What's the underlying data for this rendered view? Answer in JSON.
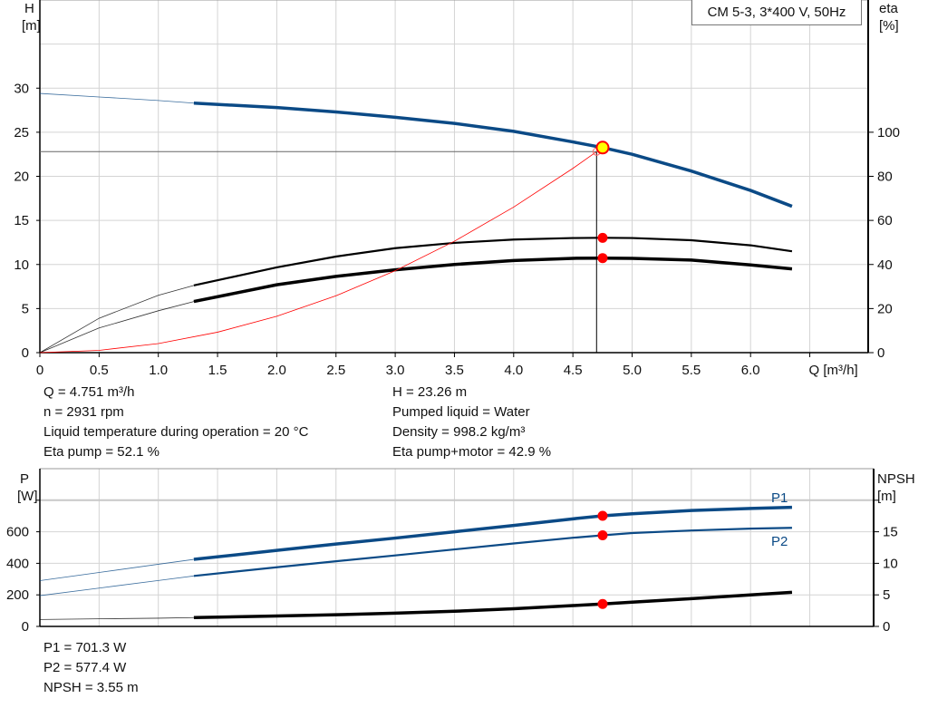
{
  "chart_data": [
    {
      "type": "line",
      "title": "CM 5-3, 3*400 V, 50Hz",
      "xlabel": "Q [m³/h]",
      "ylabel": "H",
      "ylabel_unit": "[m]",
      "y2label": "eta",
      "y2label_unit": "[%]",
      "xlim": [
        0,
        7
      ],
      "ylim": [
        0,
        40
      ],
      "y2lim": [
        0,
        160
      ],
      "xticks": [
        "0",
        "0.5",
        "1.0",
        "1.5",
        "2.0",
        "2.5",
        "3.0",
        "3.5",
        "4.0",
        "4.5",
        "5.0",
        "5.5",
        "6.0"
      ],
      "yticks": [
        0,
        5,
        10,
        15,
        20,
        25,
        30
      ],
      "y2ticks": [
        0,
        20,
        40,
        60,
        80,
        100
      ],
      "grid": true,
      "series": [
        {
          "key": "H",
          "axis": "left",
          "color": "#0b4a86",
          "x": [
            0,
            0.5,
            1.0,
            1.3,
            2.0,
            2.5,
            3.0,
            3.5,
            4.0,
            4.5,
            4.751,
            5.0,
            5.5,
            6.0,
            6.35
          ],
          "y": [
            29.4,
            29.0,
            28.6,
            28.3,
            27.8,
            27.3,
            26.7,
            26.0,
            25.1,
            23.9,
            23.26,
            22.5,
            20.6,
            18.4,
            16.6
          ],
          "thick_from": 1.3
        },
        {
          "key": "eta_pump",
          "axis": "right",
          "color": "#000000",
          "x": [
            0,
            0.5,
            1.0,
            1.3,
            2.0,
            2.5,
            3.0,
            3.5,
            4.0,
            4.5,
            4.751,
            5.0,
            5.5,
            6.0,
            6.35
          ],
          "y": [
            0,
            15.6,
            26,
            30.5,
            38.7,
            43.6,
            47.4,
            49.8,
            51.3,
            52.0,
            52.1,
            52.0,
            51.0,
            48.7,
            46.0
          ],
          "thick_from": 1.3
        },
        {
          "key": "eta_pump_motor",
          "axis": "right",
          "color": "#000000",
          "x": [
            0,
            0.5,
            1.0,
            1.3,
            2.0,
            2.5,
            3.0,
            3.5,
            4.0,
            4.5,
            4.751,
            5.0,
            5.5,
            6.0,
            6.35
          ],
          "y": [
            0,
            11.2,
            19,
            23.2,
            30.8,
            34.6,
            37.6,
            40.0,
            41.8,
            42.8,
            42.9,
            42.8,
            42.0,
            39.8,
            38.0
          ],
          "thick_from": 1.3
        },
        {
          "key": "system_curve",
          "axis": "left",
          "color": "#ff0000",
          "x": [
            0,
            0.5,
            1.0,
            1.5,
            2.0,
            2.5,
            3.0,
            3.5,
            4.0,
            4.5,
            4.7
          ],
          "y": [
            0,
            0.26,
            1.03,
            2.32,
            4.13,
            6.45,
            9.29,
            12.64,
            16.51,
            20.9,
            22.8
          ]
        }
      ],
      "duty_point": {
        "Q": 4.751,
        "H": 23.26,
        "eta_pump": 52.1,
        "eta_pump_motor": 42.9
      },
      "requested_point": {
        "Q": 4.7,
        "H": 22.8
      }
    },
    {
      "type": "line",
      "ylabel": "P",
      "ylabel_unit": "[W]",
      "y2label": "NPSH",
      "y2label_unit": "[m]",
      "xlim": [
        0,
        7
      ],
      "ylim": [
        0,
        1000
      ],
      "y2lim": [
        0,
        25
      ],
      "yticks": [
        0,
        200,
        400,
        600
      ],
      "y2ticks": [
        0,
        5,
        10,
        15
      ],
      "grid": true,
      "series": [
        {
          "name": "P1",
          "key": "P1",
          "axis": "left",
          "color": "#0b4a86",
          "x": [
            0,
            0.5,
            1.0,
            1.3,
            2.0,
            2.5,
            3.0,
            3.5,
            4.0,
            4.5,
            4.751,
            5.0,
            5.5,
            6.0,
            6.35
          ],
          "y": [
            290,
            342,
            394,
            425,
            482,
            522,
            560,
            600,
            640,
            682,
            701.3,
            714,
            735,
            748,
            755
          ],
          "thick_from": 1.3,
          "thick": true
        },
        {
          "name": "P2",
          "key": "P2",
          "axis": "left",
          "color": "#0b4a86",
          "x": [
            0,
            0.5,
            1.0,
            1.3,
            2.0,
            2.5,
            3.0,
            3.5,
            4.0,
            4.5,
            4.751,
            5.0,
            5.5,
            6.0,
            6.35
          ],
          "y": [
            195,
            243,
            291,
            320,
            375,
            413,
            450,
            488,
            526,
            562,
            577.4,
            592,
            608,
            620,
            625
          ],
          "thick_from": 1.3
        },
        {
          "key": "NPSH",
          "axis": "right",
          "color": "#000000",
          "x": [
            0,
            0.5,
            1.0,
            1.3,
            2.0,
            2.5,
            3.0,
            3.5,
            4.0,
            4.5,
            4.751,
            5.0,
            5.5,
            6.0,
            6.35
          ],
          "y": [
            1.1,
            1.2,
            1.3,
            1.4,
            1.65,
            1.85,
            2.1,
            2.4,
            2.8,
            3.3,
            3.55,
            3.85,
            4.4,
            5.0,
            5.4
          ],
          "thick_from": 1.3,
          "thick": true
        }
      ],
      "duty_point": {
        "Q": 4.751,
        "P1": 701.3,
        "P2": 577.4,
        "NPSH": 3.55
      }
    }
  ],
  "info": {
    "q": "Q = 4.751 m³/h",
    "n": "n = 2931 rpm",
    "temp": "Liquid temperature during operation = 20 °C",
    "eta_pump": "Eta pump = 52.1 %",
    "h": "H = 23.26 m",
    "liquid": "Pumped liquid = Water",
    "density": "Density = 998.2 kg/m³",
    "eta_total": "Eta pump+motor = 42.9 %",
    "p1": "P1 = 701.3 W",
    "p2": "P2 = 577.4 W",
    "npsh": "NPSH = 3.55 m"
  },
  "colors": {
    "curve_blue": "#0b4a86",
    "duty_point": "#ff0000",
    "operating_marker": "#ffff00",
    "grid": "#d4d4d4"
  }
}
